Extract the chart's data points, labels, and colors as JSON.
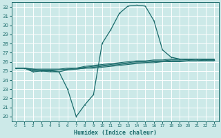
{
  "xlabel": "Humidex (Indice chaleur)",
  "xlim": [
    -0.5,
    23.5
  ],
  "ylim": [
    19.5,
    32.5
  ],
  "xticks": [
    0,
    1,
    2,
    3,
    4,
    5,
    6,
    7,
    8,
    9,
    10,
    11,
    12,
    13,
    14,
    15,
    16,
    17,
    18,
    19,
    20,
    21,
    22,
    23
  ],
  "yticks": [
    20,
    21,
    22,
    23,
    24,
    25,
    26,
    27,
    28,
    29,
    30,
    31,
    32
  ],
  "bg_color": "#cce9e8",
  "grid_color": "#b0d8d8",
  "line_color": "#1a6b6b",
  "main_curve_x": [
    0,
    1,
    2,
    3,
    4,
    5,
    6,
    7,
    8,
    9,
    10,
    11,
    12,
    13,
    14,
    15,
    16,
    17,
    18,
    19,
    20,
    21,
    22,
    23
  ],
  "main_curve_y": [
    25.3,
    25.3,
    24.9,
    25.0,
    25.0,
    24.9,
    23.0,
    20.0,
    21.3,
    22.4,
    28.0,
    29.5,
    31.3,
    32.1,
    32.2,
    32.1,
    30.5,
    27.3,
    26.5,
    26.3,
    26.2,
    26.3,
    26.2,
    26.2
  ],
  "flat_lines": [
    [
      25.3,
      25.3,
      25.2,
      25.2,
      25.2,
      25.2,
      25.3,
      25.3,
      25.5,
      25.6,
      25.7,
      25.8,
      25.9,
      26.0,
      26.1,
      26.1,
      26.2,
      26.2,
      26.3,
      26.3,
      26.3,
      26.3,
      26.3,
      26.3
    ],
    [
      25.3,
      25.3,
      25.2,
      25.1,
      25.1,
      25.1,
      25.2,
      25.3,
      25.4,
      25.5,
      25.6,
      25.7,
      25.8,
      25.9,
      26.0,
      26.0,
      26.1,
      26.1,
      26.2,
      26.2,
      26.2,
      26.2,
      26.2,
      26.2
    ],
    [
      25.3,
      25.3,
      25.1,
      25.0,
      25.0,
      25.1,
      25.2,
      25.2,
      25.3,
      25.4,
      25.5,
      25.6,
      25.7,
      25.8,
      25.9,
      25.9,
      26.0,
      26.0,
      26.1,
      26.1,
      26.1,
      26.1,
      26.2,
      26.2
    ],
    [
      25.3,
      25.3,
      25.0,
      25.0,
      24.9,
      24.9,
      25.1,
      25.2,
      25.3,
      25.3,
      25.4,
      25.5,
      25.6,
      25.7,
      25.8,
      25.9,
      25.9,
      26.0,
      26.0,
      26.0,
      26.1,
      26.1,
      26.1,
      26.1
    ]
  ]
}
